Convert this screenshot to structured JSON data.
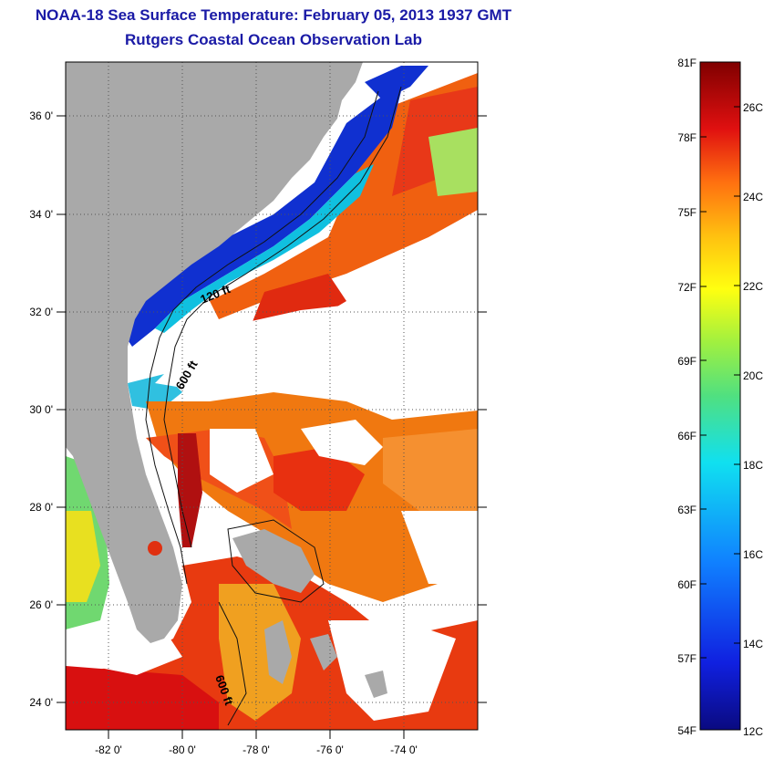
{
  "header": {
    "title": "NOAA-18 Sea Surface Temperature:  February 05, 2013 1937 GMT",
    "subtitle": "Rutgers Coastal Ocean Observation Lab"
  },
  "map": {
    "lat_ticks": [
      "36 0'",
      "34 0'",
      "32 0'",
      "30 0'",
      "28 0'",
      "26 0'",
      "24 0'"
    ],
    "lon_ticks": [
      "-82 0'",
      "-80 0'",
      "-78 0'",
      "-76 0'",
      "-74 0'"
    ],
    "contour_labels": {
      "c120": "120 ft",
      "c600a": "600 ft",
      "c600b": "600 ft"
    },
    "colors": {
      "land": "#a9a9a9",
      "cloud": "#ffffff",
      "warm": "#e02010",
      "cold": "#1030d0"
    }
  },
  "colorbar": {
    "f_labels": [
      "81F",
      "78F",
      "75F",
      "72F",
      "69F",
      "66F",
      "63F",
      "60F",
      "57F",
      "54F"
    ],
    "c_labels": [
      "26C",
      "24C",
      "22C",
      "20C",
      "18C",
      "16C",
      "14C",
      "12C"
    ]
  }
}
